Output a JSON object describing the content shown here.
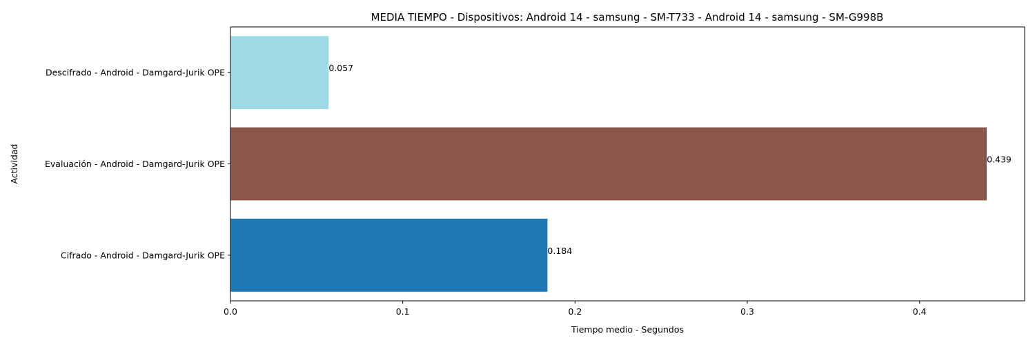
{
  "chart_data": {
    "type": "bar",
    "orientation": "horizontal",
    "title": "MEDIA TIEMPO - Dispositivos: Android 14 - samsung - SM-T733 - Android 14 - samsung - SM-G998B",
    "xlabel": "Tiempo medio - Segundos",
    "ylabel": "Actividad",
    "categories": [
      "Cifrado - Android - Damgard-Jurik OPE",
      "Evaluación - Android - Damgard-Jurik OPE",
      "Descifrado - Android - Damgard-Jurik OPE"
    ],
    "values": [
      0.184,
      0.439,
      0.057
    ],
    "value_labels": [
      "0.184",
      "0.439",
      "0.057"
    ],
    "colors": [
      "#1f77b4",
      "#8c564b",
      "#9edae5"
    ],
    "xlim": [
      0,
      0.461
    ],
    "xticks": [
      0.0,
      0.1,
      0.2,
      0.3,
      0.4
    ],
    "xtick_labels": [
      "0.0",
      "0.1",
      "0.2",
      "0.3",
      "0.4"
    ],
    "grid": false,
    "legend": false
  }
}
